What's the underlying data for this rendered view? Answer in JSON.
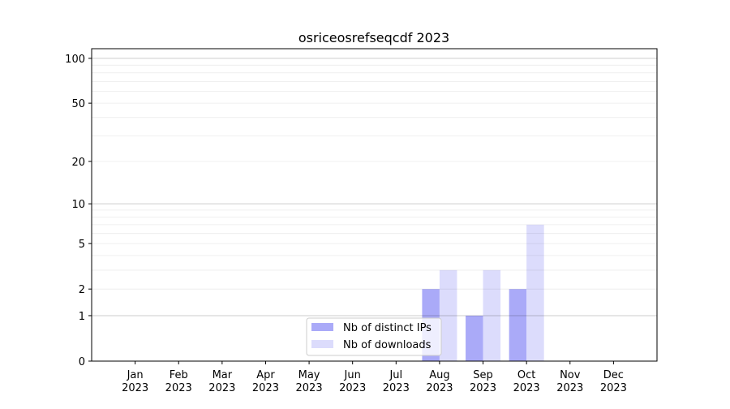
{
  "chart_data": {
    "type": "bar",
    "title": "osriceosrefseqcdf 2023",
    "xlabel": "",
    "ylabel": "",
    "yscale": "log(1+y)",
    "ylim": [
      0,
      116
    ],
    "yticks": [
      0,
      1,
      2,
      5,
      10,
      20,
      50,
      100
    ],
    "grid": true,
    "legend_position": "lower-center",
    "categories": [
      "Jan\n2023",
      "Feb\n2023",
      "Mar\n2023",
      "Apr\n2023",
      "May\n2023",
      "Jun\n2023",
      "Jul\n2023",
      "Aug\n2023",
      "Sep\n2023",
      "Oct\n2023",
      "Nov\n2023",
      "Dec\n2023"
    ],
    "series": [
      {
        "name": "Nb of distinct IPs",
        "color": "#aaaaf8",
        "values": [
          0,
          0,
          0,
          0,
          0,
          0,
          0,
          2,
          1,
          2,
          0,
          0
        ]
      },
      {
        "name": "Nb of downloads",
        "color": "#dcdcfc",
        "values": [
          0,
          0,
          0,
          0,
          0,
          0,
          0,
          3,
          3,
          7,
          0,
          0
        ]
      }
    ]
  }
}
